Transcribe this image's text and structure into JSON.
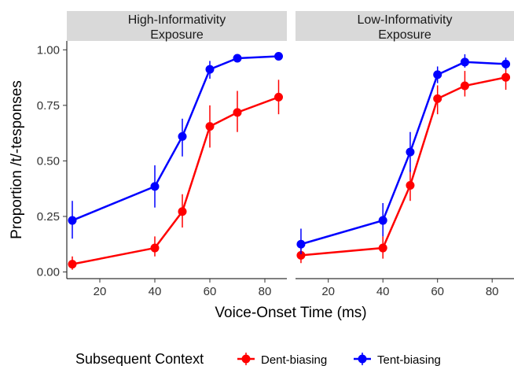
{
  "chart_data": {
    "type": "line",
    "xlabel": "Voice-Onset Time (ms)",
    "ylabel": "Proportion /t/-tesponses",
    "xlim": [
      8,
      88
    ],
    "ylim": [
      -0.03,
      1.04
    ],
    "x_ticks": [
      20,
      40,
      60,
      80
    ],
    "y_ticks": [
      0.0,
      0.25,
      0.5,
      0.75,
      1.0
    ],
    "y_tick_labels": [
      "0.00",
      "0.25",
      "0.50",
      "0.75",
      "1.00"
    ],
    "grid": false,
    "legend": {
      "title": "Subsequent Context",
      "position": "bottom",
      "entries": [
        "Dent-biasing",
        "Tent-biasing"
      ]
    },
    "colors": {
      "Dent-biasing": "#ff0000",
      "Tent-biasing": "#0000ff"
    },
    "panels": [
      {
        "strip": [
          "High-Informativity",
          "Exposure"
        ],
        "series": [
          {
            "name": "Dent-biasing",
            "x": [
              10,
              40,
              50,
              60,
              70,
              85
            ],
            "y": [
              0.035,
              0.108,
              0.272,
              0.655,
              0.718,
              0.787
            ],
            "lower": [
              0.01,
              0.07,
              0.2,
              0.56,
              0.63,
              0.71
            ],
            "upper": [
              0.07,
              0.16,
              0.35,
              0.75,
              0.815,
              0.865
            ]
          },
          {
            "name": "Tent-biasing",
            "x": [
              10,
              40,
              50,
              60,
              70,
              85
            ],
            "y": [
              0.232,
              0.385,
              0.61,
              0.912,
              0.962,
              0.971
            ],
            "lower": [
              0.15,
              0.29,
              0.52,
              0.87,
              0.945,
              0.96
            ],
            "upper": [
              0.32,
              0.48,
              0.69,
              0.95,
              0.98,
              0.985
            ]
          }
        ]
      },
      {
        "strip": [
          "Low-Informativity",
          "Exposure"
        ],
        "series": [
          {
            "name": "Dent-biasing",
            "x": [
              10,
              40,
              50,
              60,
              70,
              85
            ],
            "y": [
              0.075,
              0.108,
              0.39,
              0.78,
              0.838,
              0.876
            ],
            "lower": [
              0.04,
              0.06,
              0.32,
              0.71,
              0.79,
              0.82
            ],
            "upper": [
              0.11,
              0.16,
              0.46,
              0.84,
              0.905,
              0.925
            ]
          },
          {
            "name": "Tent-biasing",
            "x": [
              10,
              40,
              50,
              60,
              70,
              85
            ],
            "y": [
              0.125,
              0.232,
              0.54,
              0.888,
              0.945,
              0.936
            ],
            "lower": [
              0.08,
              0.16,
              0.45,
              0.85,
              0.92,
              0.91
            ],
            "upper": [
              0.195,
              0.31,
              0.63,
              0.925,
              0.98,
              0.965
            ]
          }
        ]
      }
    ]
  }
}
